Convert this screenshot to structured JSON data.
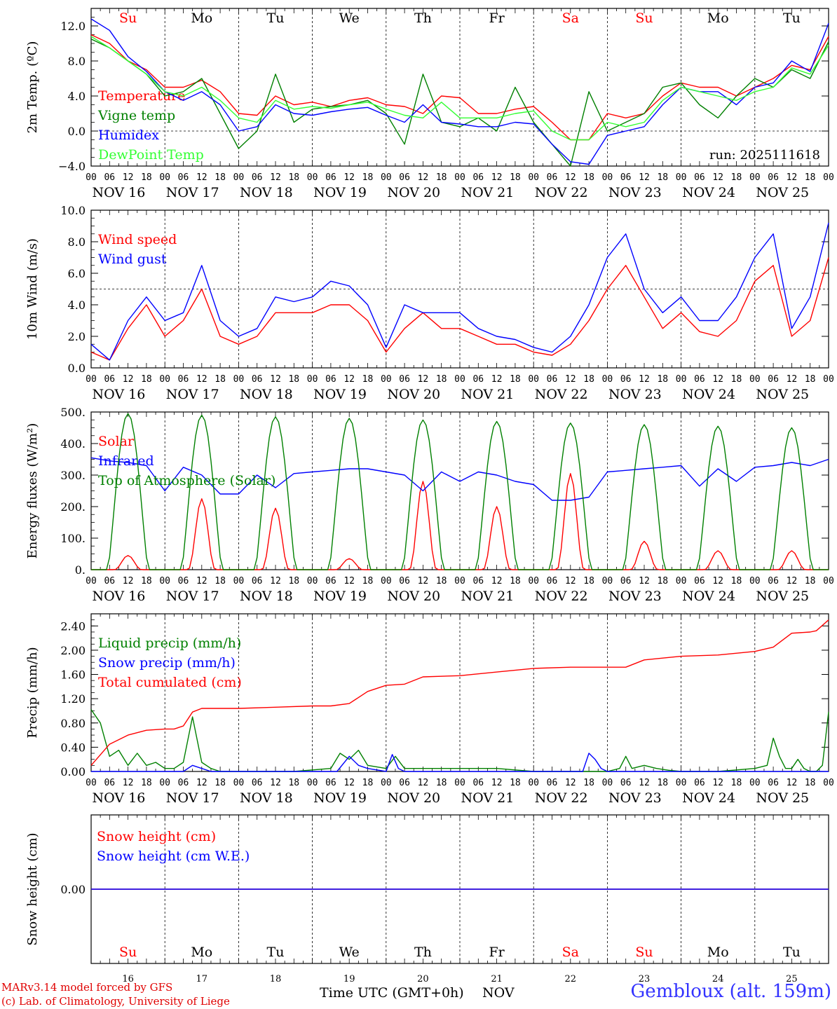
{
  "meta": {
    "run_label": "run: 2025111618",
    "station": "Gembloux (alt. 159m)",
    "credit_line1": "MARv3.14 model forced by GFS",
    "credit_line2": "(c) Lab. of Climatology, University of Liege",
    "x_title": "Time UTC (GMT+0h)",
    "x_month": "NOV"
  },
  "axis": {
    "hour_labels": [
      "00",
      "06",
      "12",
      "18"
    ],
    "final_hour_label": "00",
    "day_labels": [
      "NOV 16",
      "NOV 17",
      "NOV 18",
      "NOV 19",
      "NOV 20",
      "NOV 21",
      "NOV 22",
      "NOV 23",
      "NOV 24",
      "NOV 25"
    ],
    "weekdays": [
      "Su",
      "Mo",
      "Tu",
      "We",
      "Th",
      "Fr",
      "Sa",
      "Su",
      "Mo",
      "Tu"
    ],
    "day_numbers": [
      "16",
      "17",
      "18",
      "19",
      "20",
      "21",
      "22",
      "23",
      "24",
      "25"
    ],
    "weekend_days": [
      0,
      6,
      7
    ],
    "colors": {
      "weekend": "#ff0000",
      "weekday": "#000000"
    }
  },
  "chart_data": [
    {
      "type": "line",
      "id": "temp",
      "ylabel": "2m Temp. (ºC)",
      "ylim": [
        -4,
        14
      ],
      "yticks": [
        -4,
        0,
        4,
        8,
        12
      ],
      "ytick_labels": [
        "−4.0",
        "0.0",
        "4.0",
        "8.0",
        "12.0"
      ],
      "ref_line": 0,
      "x_unit": "hours since NOV 16 00 UTC",
      "series": [
        {
          "name": "Temperature",
          "color": "#ff0000",
          "x": [
            0,
            6,
            12,
            18,
            24,
            30,
            36,
            42,
            48,
            54,
            60,
            66,
            72,
            78,
            84,
            90,
            96,
            102,
            108,
            114,
            120,
            126,
            132,
            138,
            144,
            150,
            156,
            162,
            168,
            174,
            180,
            186,
            192,
            198,
            204,
            210,
            216,
            222,
            228,
            234,
            240
          ],
          "values": [
            11,
            10,
            8,
            7,
            5,
            5,
            5.8,
            4.5,
            2,
            1.8,
            4,
            3,
            3.3,
            2.8,
            3.5,
            3.8,
            3,
            2.8,
            2,
            4,
            3.8,
            2,
            2,
            2.5,
            2.8,
            1,
            -1,
            -1,
            2,
            1.5,
            2,
            4,
            5.5,
            5,
            5,
            4,
            5,
            6,
            7.5,
            7,
            10.8
          ]
        },
        {
          "name": "Vigne temp",
          "color": "#008000",
          "x": [
            0,
            6,
            12,
            18,
            24,
            30,
            36,
            42,
            48,
            54,
            60,
            66,
            72,
            78,
            84,
            90,
            96,
            102,
            108,
            114,
            120,
            126,
            132,
            138,
            144,
            150,
            156,
            162,
            168,
            174,
            180,
            186,
            192,
            198,
            204,
            210,
            216,
            222,
            228,
            234,
            240
          ],
          "values": [
            10.5,
            9.5,
            8,
            6.5,
            4,
            4.5,
            6,
            2,
            -2,
            0,
            6.5,
            1,
            2.5,
            2.8,
            3,
            3.5,
            2,
            -1.5,
            6.5,
            1,
            0.5,
            1.5,
            0,
            5,
            1,
            -1.5,
            -4,
            4.5,
            0,
            1,
            2,
            5,
            5.5,
            3,
            1.5,
            4,
            6,
            5,
            7,
            6,
            10.2
          ]
        },
        {
          "name": "Humidex",
          "color": "#0000ff",
          "x": [
            0,
            6,
            12,
            18,
            24,
            30,
            36,
            42,
            48,
            54,
            60,
            66,
            72,
            78,
            84,
            90,
            96,
            102,
            108,
            114,
            120,
            126,
            132,
            138,
            144,
            150,
            156,
            162,
            168,
            174,
            180,
            186,
            192,
            198,
            204,
            210,
            216,
            222,
            228,
            234,
            240
          ],
          "values": [
            12.8,
            11.5,
            8.5,
            6.8,
            4.5,
            3.5,
            4.5,
            3,
            0,
            0.5,
            3,
            2,
            1.8,
            2.2,
            2.5,
            2.7,
            1.8,
            1,
            3,
            1,
            0.8,
            0.5,
            0.5,
            1,
            0.8,
            -1.5,
            -3.5,
            -3.8,
            -0.5,
            0,
            0.5,
            3,
            5,
            4.5,
            4.5,
            3,
            5,
            5.5,
            8,
            6.8,
            12.3
          ]
        },
        {
          "name": "DewPoint Temp",
          "color": "#33ff33",
          "x": [
            0,
            6,
            12,
            18,
            24,
            30,
            36,
            42,
            48,
            54,
            60,
            66,
            72,
            78,
            84,
            90,
            96,
            102,
            108,
            114,
            120,
            126,
            132,
            138,
            144,
            150,
            156,
            162,
            168,
            174,
            180,
            186,
            192,
            198,
            204,
            210,
            216,
            222,
            228,
            234,
            240
          ],
          "values": [
            10.8,
            9.5,
            8,
            6.5,
            4.5,
            4,
            5,
            3.5,
            1.5,
            1,
            3.5,
            2.5,
            2.8,
            2.6,
            3,
            3.3,
            2.5,
            1.8,
            1.5,
            3.3,
            1.5,
            1.5,
            1.5,
            2,
            2.3,
            0,
            -1,
            -1,
            1,
            0.5,
            1,
            3.5,
            5,
            4.5,
            4,
            3.5,
            4.5,
            5,
            7.2,
            6.5,
            9.8
          ]
        }
      ]
    },
    {
      "type": "line",
      "id": "wind",
      "ylabel": "10m Wind (m/s)",
      "ylim": [
        0,
        10
      ],
      "yticks": [
        0,
        2,
        4,
        6,
        8,
        10
      ],
      "ytick_labels": [
        "0.0",
        "2.0",
        "4.0",
        "6.0",
        "8.0",
        "10.0"
      ],
      "ref_line": 5,
      "series": [
        {
          "name": "Wind speed",
          "color": "#ff0000",
          "x": [
            0,
            6,
            12,
            18,
            24,
            30,
            36,
            42,
            48,
            54,
            60,
            66,
            72,
            78,
            84,
            90,
            96,
            102,
            108,
            114,
            120,
            126,
            132,
            138,
            144,
            150,
            156,
            162,
            168,
            174,
            180,
            186,
            192,
            198,
            204,
            210,
            216,
            222,
            228,
            234,
            240
          ],
          "values": [
            1,
            0.5,
            2.5,
            4,
            2,
            3,
            5,
            2,
            1.5,
            2,
            3.5,
            3.5,
            3.5,
            4,
            4,
            3,
            1,
            2.5,
            3.5,
            2.5,
            2.5,
            2,
            1.5,
            1.5,
            1,
            0.8,
            1.5,
            3,
            5,
            6.5,
            4.5,
            2.5,
            3.5,
            2.3,
            2,
            3,
            5.5,
            6.5,
            2,
            3,
            7
          ]
        },
        {
          "name": "Wind gust",
          "color": "#0000ff",
          "x": [
            0,
            6,
            12,
            18,
            24,
            30,
            36,
            42,
            48,
            54,
            60,
            66,
            72,
            78,
            84,
            90,
            96,
            102,
            108,
            114,
            120,
            126,
            132,
            138,
            144,
            150,
            156,
            162,
            168,
            174,
            180,
            186,
            192,
            198,
            204,
            210,
            216,
            222,
            228,
            234,
            240
          ],
          "values": [
            1.5,
            0.5,
            3,
            4.5,
            3,
            3.5,
            6.5,
            3,
            2,
            2.5,
            4.5,
            4.2,
            4.5,
            5.5,
            5.2,
            4,
            1.3,
            4,
            3.5,
            3.5,
            3.5,
            2.5,
            2,
            1.8,
            1.3,
            1,
            2,
            4,
            7,
            8.5,
            5,
            3.5,
            4.5,
            3,
            3,
            4.5,
            7,
            8.5,
            2.5,
            4.5,
            9.2
          ]
        }
      ]
    },
    {
      "type": "line",
      "id": "energy",
      "ylabel": "Energy fluxes (W/m²)",
      "ylim": [
        0,
        500
      ],
      "yticks": [
        0,
        100,
        200,
        300,
        400,
        500
      ],
      "ytick_labels": [
        "0.",
        "100.",
        "200.",
        "300.",
        "400.",
        "500."
      ],
      "series": [
        {
          "name": "Solar",
          "color": "#ff0000",
          "day_peaks": [
            45,
            225,
            195,
            35,
            280,
            200,
            305,
            90,
            60,
            60
          ]
        },
        {
          "name": "Infrared",
          "color": "#0000ff",
          "x": [
            0,
            6,
            12,
            18,
            24,
            30,
            36,
            42,
            48,
            54,
            60,
            66,
            72,
            78,
            84,
            90,
            96,
            102,
            108,
            114,
            120,
            126,
            132,
            138,
            144,
            150,
            156,
            162,
            168,
            174,
            180,
            186,
            192,
            198,
            204,
            210,
            216,
            222,
            228,
            234,
            240
          ],
          "values": [
            355,
            345,
            340,
            330,
            250,
            325,
            300,
            240,
            240,
            300,
            260,
            305,
            310,
            315,
            320,
            320,
            310,
            300,
            250,
            310,
            280,
            310,
            300,
            280,
            270,
            220,
            220,
            230,
            310,
            315,
            320,
            325,
            330,
            265,
            320,
            280,
            325,
            330,
            340,
            330,
            350
          ]
        },
        {
          "name": "Top of Atmosphere (Solar)",
          "color": "#008000",
          "day_peaks": [
            495,
            490,
            485,
            480,
            475,
            470,
            465,
            460,
            455,
            450
          ]
        }
      ]
    },
    {
      "type": "line",
      "id": "precip",
      "ylabel": "Precip (mm/h)",
      "ylim": [
        0,
        2.6
      ],
      "yticks": [
        0,
        0.4,
        0.8,
        1.2,
        1.6,
        2.0,
        2.4
      ],
      "ytick_labels": [
        "0.00",
        "0.40",
        "0.80",
        "1.20",
        "1.60",
        "2.00",
        "2.40"
      ],
      "series": [
        {
          "name": "Liquid precip (mm/h)",
          "color": "#008000",
          "x": [
            0,
            3,
            6,
            9,
            12,
            15,
            18,
            21,
            24,
            27,
            30,
            33,
            36,
            39,
            42,
            48,
            60,
            66,
            78,
            81,
            84,
            87,
            90,
            96,
            99,
            102,
            108,
            120,
            132,
            144,
            156,
            168,
            172,
            174,
            176,
            180,
            184,
            188,
            192,
            204,
            216,
            220,
            222,
            224,
            226,
            228,
            230,
            232,
            234,
            236,
            238,
            240
          ],
          "values": [
            1.02,
            0.8,
            0.25,
            0.35,
            0.1,
            0.3,
            0.1,
            0.15,
            0.05,
            0.05,
            0.15,
            0.9,
            0.15,
            0.05,
            0,
            0,
            0,
            0,
            0.05,
            0.3,
            0.2,
            0.35,
            0.1,
            0.05,
            0.25,
            0.05,
            0.05,
            0.05,
            0.05,
            0,
            0,
            0,
            0.05,
            0.25,
            0.05,
            0.1,
            0.05,
            0.02,
            0,
            0,
            0.05,
            0.1,
            0.55,
            0.25,
            0.05,
            0.05,
            0.2,
            0.05,
            0,
            0,
            0.1,
            0.98
          ]
        },
        {
          "name": "Snow precip (mm/h)",
          "color": "#0000ff",
          "x": [
            0,
            30,
            33,
            36,
            39,
            80,
            84,
            87,
            90,
            96,
            98,
            100,
            102,
            108,
            120,
            160,
            162,
            164,
            166,
            168,
            170,
            240
          ],
          "values": [
            0,
            0,
            0.1,
            0.05,
            0,
            0,
            0.25,
            0.1,
            0.05,
            0,
            0.28,
            0.05,
            0,
            0,
            0,
            0,
            0.3,
            0.2,
            0.05,
            0,
            0,
            0
          ]
        },
        {
          "name": "Total cumulated (cm)",
          "color": "#ff0000",
          "x": [
            0,
            6,
            12,
            18,
            24,
            27,
            30,
            33,
            36,
            42,
            48,
            60,
            72,
            78,
            84,
            90,
            96,
            102,
            108,
            120,
            132,
            144,
            156,
            168,
            174,
            180,
            192,
            204,
            216,
            222,
            228,
            234,
            236,
            240
          ],
          "values": [
            0.1,
            0.45,
            0.6,
            0.68,
            0.7,
            0.7,
            0.75,
            0.98,
            1.04,
            1.04,
            1.04,
            1.06,
            1.08,
            1.08,
            1.12,
            1.32,
            1.42,
            1.44,
            1.56,
            1.58,
            1.64,
            1.7,
            1.72,
            1.72,
            1.72,
            1.84,
            1.9,
            1.92,
            1.98,
            2.05,
            2.28,
            2.3,
            2.32,
            2.5
          ]
        }
      ]
    },
    {
      "type": "line",
      "id": "snow",
      "ylabel": "Snow height (cm)",
      "ylim": [
        -1,
        1
      ],
      "yticks": [
        0
      ],
      "ytick_labels": [
        "0.00"
      ],
      "series": [
        {
          "name": "Snow height (cm)",
          "color": "#ff0000",
          "x": [
            0,
            240
          ],
          "values": [
            0,
            0
          ]
        },
        {
          "name": "Snow height (cm W.E.)",
          "color": "#0000ff",
          "x": [
            0,
            240
          ],
          "values": [
            0,
            0
          ]
        }
      ]
    }
  ]
}
